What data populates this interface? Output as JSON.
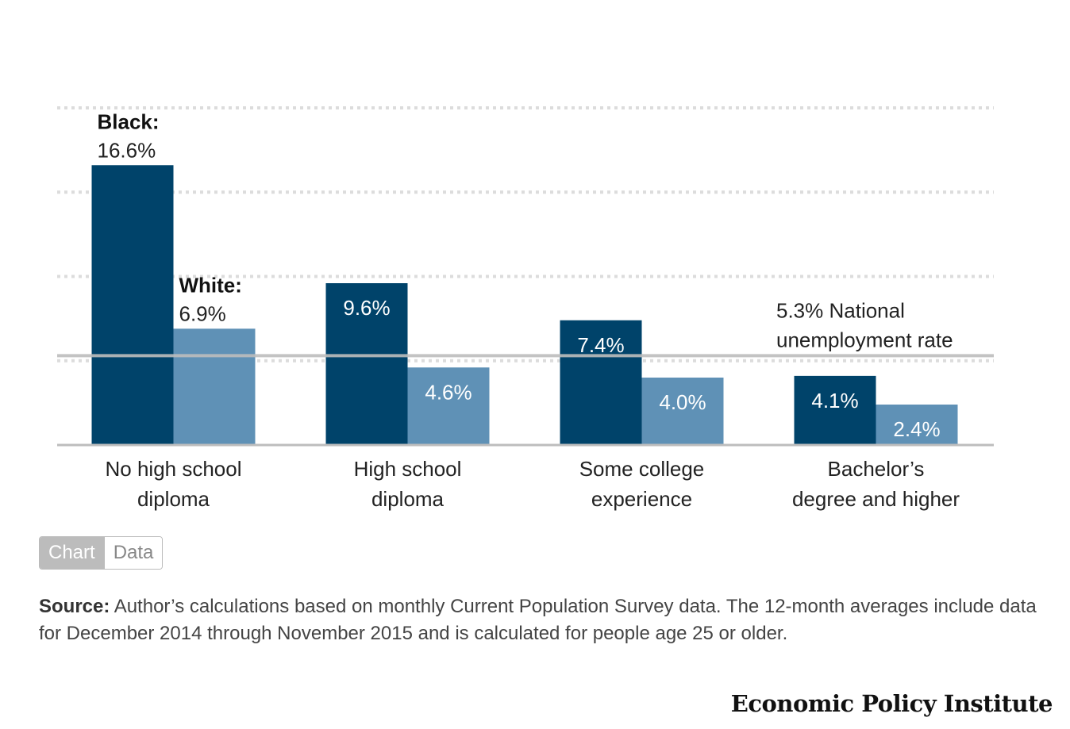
{
  "chart_data": {
    "type": "bar",
    "title": "",
    "xlabel": "",
    "ylabel": "",
    "ylim": [
      0,
      20
    ],
    "grid": true,
    "categories": [
      [
        "No high school",
        "diploma"
      ],
      [
        "High school",
        "diploma"
      ],
      [
        "Some college",
        "experience"
      ],
      [
        "Bachelor’s",
        "degree and higher"
      ]
    ],
    "series": [
      {
        "name": "Black:",
        "values": [
          16.6,
          9.6,
          7.4,
          4.1
        ],
        "labels": [
          "16.6%",
          "9.6%",
          "7.4%",
          "4.1%"
        ],
        "color": "#00436a"
      },
      {
        "name": "White:",
        "values": [
          6.9,
          4.6,
          4.0,
          2.4
        ],
        "labels": [
          "6.9%",
          "4.6%",
          "4.0%",
          "2.4%"
        ],
        "color": "#5f91b6"
      }
    ],
    "reference_line": {
      "value": 5.3,
      "label": [
        "5.3% National",
        "unemployment rate"
      ],
      "color": "#bdbdbd"
    }
  },
  "toggle": {
    "chart_label": "Chart",
    "data_label": "Data"
  },
  "source": {
    "label": "Source:",
    "text": " Author’s calculations based on monthly Current Population Survey data. The 12-month averages include data for December 2014 through November 2015 and is calculated for people age 25 or older."
  },
  "brand": "Economic Policy Institute"
}
